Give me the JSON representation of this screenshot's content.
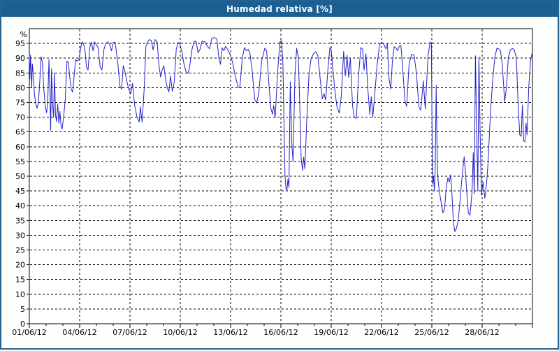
{
  "window": {
    "title": "Humedad relativa [%]"
  },
  "colors": {
    "titlebar_bg": "#1c5f93",
    "titlebar_text": "#ffffff",
    "frame_border": "#27618f",
    "page_bg": "#fdfffd",
    "plot_bg": "#ffffff",
    "grid": "#000000",
    "axis": "#000000",
    "series_line": "#2222c8"
  },
  "chart_data": {
    "type": "line",
    "title": "Humedad relativa [%]",
    "xlabel": "",
    "ylabel": "%",
    "ylim": [
      0,
      100
    ],
    "ytick_min": 0,
    "ytick_max": 95,
    "ytick_step": 5,
    "x_span_days": 30,
    "x_minor_interval_days": 1,
    "x_major_interval_days": 3,
    "x_tick_labels": [
      "01/06/12",
      "04/06/12",
      "07/06/12",
      "10/06/12",
      "13/06/12",
      "16/06/12",
      "19/06/12",
      "22/06/12",
      "25/06/12",
      "28/06/12"
    ],
    "grid": "dashed",
    "legend_position": "none",
    "series": [
      {
        "name": "Humedad relativa",
        "unit": "%",
        "color": "#2222c8",
        "points": [
          [
            0.0,
            90.5
          ],
          [
            0.03,
            83
          ],
          [
            0.07,
            91
          ],
          [
            0.1,
            86
          ],
          [
            0.14,
            80
          ],
          [
            0.18,
            88
          ],
          [
            0.24,
            84
          ],
          [
            0.3,
            78
          ],
          [
            0.38,
            74.5
          ],
          [
            0.46,
            73
          ],
          [
            0.54,
            75
          ],
          [
            0.62,
            82
          ],
          [
            0.7,
            90.5
          ],
          [
            0.78,
            88.5
          ],
          [
            0.86,
            80
          ],
          [
            0.95,
            73.5
          ],
          [
            1.03,
            71.5
          ],
          [
            1.1,
            76
          ],
          [
            1.17,
            89.5
          ],
          [
            1.23,
            78
          ],
          [
            1.27,
            65.5
          ],
          [
            1.32,
            86.5
          ],
          [
            1.38,
            75
          ],
          [
            1.44,
            70
          ],
          [
            1.5,
            85
          ],
          [
            1.56,
            71
          ],
          [
            1.62,
            68.5
          ],
          [
            1.69,
            74.5
          ],
          [
            1.76,
            68
          ],
          [
            1.82,
            72
          ],
          [
            1.89,
            67
          ],
          [
            1.96,
            66
          ],
          [
            2.04,
            70
          ],
          [
            2.14,
            76
          ],
          [
            2.24,
            89
          ],
          [
            2.33,
            88.5
          ],
          [
            2.42,
            83
          ],
          [
            2.5,
            79.5
          ],
          [
            2.58,
            78.5
          ],
          [
            2.67,
            84
          ],
          [
            2.76,
            89.5
          ],
          [
            2.86,
            89
          ],
          [
            2.95,
            89.5
          ],
          [
            3.05,
            93
          ],
          [
            3.14,
            95.5
          ],
          [
            3.23,
            95
          ],
          [
            3.32,
            92.5
          ],
          [
            3.41,
            87
          ],
          [
            3.5,
            86
          ],
          [
            3.6,
            93.5
          ],
          [
            3.7,
            95.5
          ],
          [
            3.8,
            92.5
          ],
          [
            3.9,
            95.5
          ],
          [
            4.0,
            94.5
          ],
          [
            4.1,
            93.5
          ],
          [
            4.22,
            87
          ],
          [
            4.33,
            86
          ],
          [
            4.45,
            93
          ],
          [
            4.56,
            95
          ],
          [
            4.68,
            95.5
          ],
          [
            4.8,
            94.5
          ],
          [
            4.9,
            92.5
          ],
          [
            5.0,
            95.3
          ],
          [
            5.1,
            95.5
          ],
          [
            5.18,
            92.8
          ],
          [
            5.28,
            88
          ],
          [
            5.4,
            80.5
          ],
          [
            5.5,
            79.5
          ],
          [
            5.6,
            87.5
          ],
          [
            5.7,
            85.5
          ],
          [
            5.82,
            82
          ],
          [
            5.94,
            79.2
          ],
          [
            6.05,
            78
          ],
          [
            6.15,
            81.5
          ],
          [
            6.28,
            74
          ],
          [
            6.42,
            70
          ],
          [
            6.55,
            68.4
          ],
          [
            6.62,
            73.5
          ],
          [
            6.72,
            68.3
          ],
          [
            6.84,
            79
          ],
          [
            6.95,
            94
          ],
          [
            7.05,
            95.5
          ],
          [
            7.16,
            96.3
          ],
          [
            7.27,
            96
          ],
          [
            7.38,
            92.8
          ],
          [
            7.5,
            96.3
          ],
          [
            7.62,
            95.5
          ],
          [
            7.72,
            88
          ],
          [
            7.82,
            83.6
          ],
          [
            7.92,
            86
          ],
          [
            8.02,
            87.4
          ],
          [
            8.12,
            83
          ],
          [
            8.22,
            80
          ],
          [
            8.32,
            78.6
          ],
          [
            8.42,
            84
          ],
          [
            8.52,
            78.8
          ],
          [
            8.64,
            82
          ],
          [
            8.76,
            93
          ],
          [
            8.87,
            95.3
          ],
          [
            8.97,
            95
          ],
          [
            9.1,
            92
          ],
          [
            9.22,
            88
          ],
          [
            9.34,
            85.5
          ],
          [
            9.45,
            84.8
          ],
          [
            9.56,
            87
          ],
          [
            9.7,
            93
          ],
          [
            9.82,
            95.6
          ],
          [
            9.94,
            95.8
          ],
          [
            10.06,
            91.8
          ],
          [
            10.18,
            93
          ],
          [
            10.3,
            95.8
          ],
          [
            10.45,
            95.6
          ],
          [
            10.6,
            94.2
          ],
          [
            10.75,
            93.2
          ],
          [
            10.88,
            96.8
          ],
          [
            11.02,
            97
          ],
          [
            11.18,
            96.6
          ],
          [
            11.3,
            90
          ],
          [
            11.4,
            87.9
          ],
          [
            11.5,
            93.5
          ],
          [
            11.6,
            92.5
          ],
          [
            11.7,
            94
          ],
          [
            11.82,
            93
          ],
          [
            11.95,
            91.5
          ],
          [
            12.1,
            89
          ],
          [
            12.28,
            84
          ],
          [
            12.44,
            80.3
          ],
          [
            12.55,
            80
          ],
          [
            12.7,
            90
          ],
          [
            12.82,
            93.6
          ],
          [
            12.94,
            92.5
          ],
          [
            13.05,
            93
          ],
          [
            13.16,
            91.5
          ],
          [
            13.28,
            86
          ],
          [
            13.44,
            76
          ],
          [
            13.55,
            74.8
          ],
          [
            13.68,
            78
          ],
          [
            13.85,
            89
          ],
          [
            14.04,
            93.4
          ],
          [
            14.15,
            92.5
          ],
          [
            14.3,
            80
          ],
          [
            14.4,
            73
          ],
          [
            14.5,
            71
          ],
          [
            14.57,
            74
          ],
          [
            14.66,
            69.8
          ],
          [
            14.8,
            85
          ],
          [
            14.94,
            95.5
          ],
          [
            15.04,
            96
          ],
          [
            15.12,
            88
          ],
          [
            15.18,
            70
          ],
          [
            15.24,
            50.5
          ],
          [
            15.3,
            46
          ],
          [
            15.36,
            45.2
          ],
          [
            15.42,
            49
          ],
          [
            15.48,
            46.2
          ],
          [
            15.56,
            82
          ],
          [
            15.64,
            62
          ],
          [
            15.72,
            55
          ],
          [
            15.84,
            85
          ],
          [
            15.94,
            93.3
          ],
          [
            16.04,
            90
          ],
          [
            16.12,
            75
          ],
          [
            16.21,
            56
          ],
          [
            16.29,
            52
          ],
          [
            16.36,
            56.5
          ],
          [
            16.43,
            52.5
          ],
          [
            16.55,
            70
          ],
          [
            16.68,
            85
          ],
          [
            16.8,
            89.8
          ],
          [
            16.94,
            91.5
          ],
          [
            17.08,
            92.2
          ],
          [
            17.2,
            91
          ],
          [
            17.34,
            83
          ],
          [
            17.47,
            76.2
          ],
          [
            17.57,
            78
          ],
          [
            17.67,
            75.8
          ],
          [
            17.8,
            86
          ],
          [
            17.92,
            93.6
          ],
          [
            18.0,
            93
          ],
          [
            18.08,
            87.5
          ],
          [
            18.2,
            80
          ],
          [
            18.34,
            73.5
          ],
          [
            18.48,
            71.4
          ],
          [
            18.6,
            77
          ],
          [
            18.74,
            92.3
          ],
          [
            18.84,
            84
          ],
          [
            18.94,
            91
          ],
          [
            19.04,
            83.5
          ],
          [
            19.14,
            90
          ],
          [
            19.27,
            74
          ],
          [
            19.38,
            70
          ],
          [
            19.5,
            69.6
          ],
          [
            19.64,
            85
          ],
          [
            19.77,
            93.6
          ],
          [
            19.87,
            93
          ],
          [
            19.96,
            86
          ],
          [
            20.07,
            91.5
          ],
          [
            20.18,
            80
          ],
          [
            20.3,
            71
          ],
          [
            20.39,
            77
          ],
          [
            20.48,
            70
          ],
          [
            20.6,
            78
          ],
          [
            20.74,
            88
          ],
          [
            20.88,
            94.5
          ],
          [
            21.02,
            95.4
          ],
          [
            21.15,
            94.6
          ],
          [
            21.25,
            93.2
          ],
          [
            21.35,
            94.8
          ],
          [
            21.45,
            83
          ],
          [
            21.55,
            79.5
          ],
          [
            21.65,
            89
          ],
          [
            21.76,
            93.9
          ],
          [
            21.86,
            93.5
          ],
          [
            21.95,
            92.5
          ],
          [
            22.06,
            94
          ],
          [
            22.16,
            94.3
          ],
          [
            22.28,
            85
          ],
          [
            22.4,
            75.5
          ],
          [
            22.5,
            73.6
          ],
          [
            22.64,
            88
          ],
          [
            22.79,
            91.3
          ],
          [
            22.94,
            91
          ],
          [
            23.08,
            85
          ],
          [
            23.23,
            73.5
          ],
          [
            23.34,
            72.4
          ],
          [
            23.49,
            82.3
          ],
          [
            23.61,
            72.8
          ],
          [
            23.78,
            91
          ],
          [
            23.9,
            95.4
          ],
          [
            23.97,
            95
          ],
          [
            24.02,
            62
          ],
          [
            24.06,
            47.5
          ],
          [
            24.1,
            50
          ],
          [
            24.15,
            44.9
          ],
          [
            24.2,
            52
          ],
          [
            24.26,
            80.8
          ],
          [
            24.32,
            55
          ],
          [
            24.38,
            48
          ],
          [
            24.46,
            44.5
          ],
          [
            24.56,
            41
          ],
          [
            24.66,
            37.6
          ],
          [
            24.76,
            39
          ],
          [
            24.86,
            46
          ],
          [
            24.96,
            49.5
          ],
          [
            25.05,
            48
          ],
          [
            25.12,
            50.5
          ],
          [
            25.2,
            44
          ],
          [
            25.28,
            35
          ],
          [
            25.37,
            31.2
          ],
          [
            25.46,
            32.2
          ],
          [
            25.56,
            34.5
          ],
          [
            25.66,
            40
          ],
          [
            25.76,
            47
          ],
          [
            25.86,
            53
          ],
          [
            25.93,
            56.6
          ],
          [
            26.01,
            51
          ],
          [
            26.09,
            44
          ],
          [
            26.18,
            37.5
          ],
          [
            26.28,
            36.8
          ],
          [
            26.4,
            45
          ],
          [
            26.47,
            58
          ],
          [
            26.53,
            44
          ],
          [
            26.6,
            90.8
          ],
          [
            26.67,
            66
          ],
          [
            26.74,
            45
          ],
          [
            26.81,
            90.4
          ],
          [
            26.88,
            65
          ],
          [
            26.96,
            43.6
          ],
          [
            27.06,
            48
          ],
          [
            27.16,
            42.5
          ],
          [
            27.26,
            47
          ],
          [
            27.36,
            55
          ],
          [
            27.5,
            72
          ],
          [
            27.62,
            82
          ],
          [
            27.75,
            90
          ],
          [
            27.88,
            93.4
          ],
          [
            28.0,
            93.1
          ],
          [
            28.09,
            92.6
          ],
          [
            28.2,
            88
          ],
          [
            28.34,
            75.3
          ],
          [
            28.45,
            80
          ],
          [
            28.56,
            90
          ],
          [
            28.68,
            92.8
          ],
          [
            28.8,
            93.3
          ],
          [
            28.92,
            92.8
          ],
          [
            29.04,
            90
          ],
          [
            29.14,
            75
          ],
          [
            29.24,
            64
          ],
          [
            29.33,
            63.5
          ],
          [
            29.4,
            74.1
          ],
          [
            29.48,
            62
          ],
          [
            29.55,
            61.6
          ],
          [
            29.62,
            68
          ],
          [
            29.68,
            64
          ],
          [
            29.78,
            80
          ],
          [
            29.88,
            89
          ],
          [
            29.97,
            91.5
          ]
        ]
      }
    ]
  }
}
